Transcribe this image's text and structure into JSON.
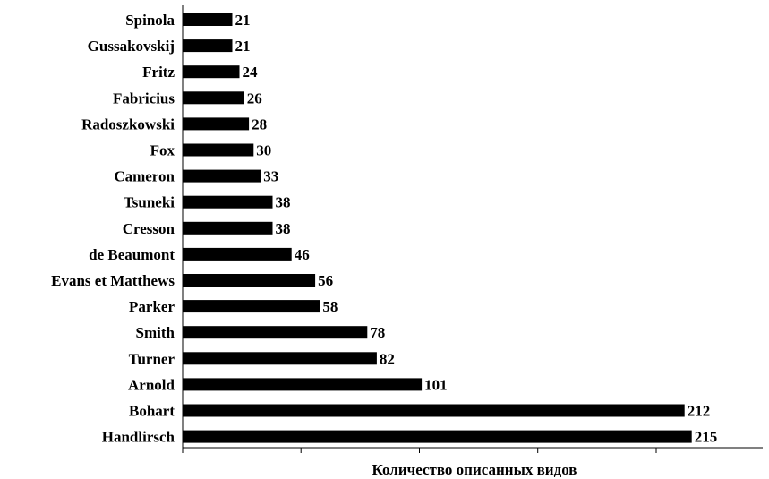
{
  "chart_data": {
    "type": "bar",
    "orientation": "horizontal",
    "categories": [
      "Spinola",
      "Gussakovskij",
      "Fritz",
      "Fabricius",
      "Radoszkowski",
      "Fox",
      "Cameron",
      "Tsuneki",
      "Cresson",
      "de Beaumont",
      "Evans et Matthews",
      "Parker",
      "Smith",
      "Turner",
      "Arnold",
      "Bohart",
      "Handlirsch"
    ],
    "values": [
      21,
      21,
      24,
      26,
      28,
      30,
      33,
      38,
      38,
      46,
      56,
      58,
      78,
      82,
      101,
      212,
      215
    ],
    "title": "",
    "xlabel": "Количество описанных видов",
    "ylabel": "",
    "xlim": [
      0,
      245
    ],
    "grid": false,
    "legend": "none",
    "bar_color": "#000000",
    "axis_color": "#000000"
  }
}
